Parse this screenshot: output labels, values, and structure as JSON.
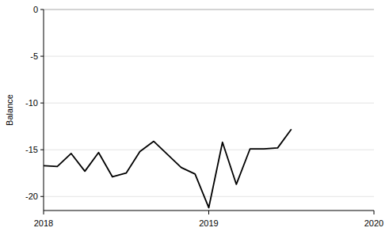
{
  "chart_data": {
    "type": "line",
    "y_label": "Balance",
    "x": [
      2018.0,
      2018.083,
      2018.167,
      2018.25,
      2018.333,
      2018.417,
      2018.5,
      2018.583,
      2018.667,
      2018.75,
      2018.833,
      2018.917,
      2019.0,
      2019.083,
      2019.167,
      2019.25,
      2019.333,
      2019.417,
      2019.5
    ],
    "series": [
      {
        "name": "Balance",
        "color": "#000000",
        "values": [
          -16.7,
          -16.8,
          -15.4,
          -17.3,
          -15.3,
          -17.9,
          -17.5,
          -15.2,
          -14.1,
          -15.5,
          -16.9,
          -17.6,
          -21.2,
          -14.2,
          -18.7,
          -14.9,
          -14.9,
          -14.8,
          -12.8
        ]
      }
    ],
    "xlim": [
      2018,
      2020
    ],
    "xticks": [
      2018,
      2019,
      2020
    ],
    "ylim": [
      -21.5,
      0
    ],
    "yticks": [
      0,
      -5,
      -10,
      -15,
      -20
    ],
    "grid": true
  }
}
